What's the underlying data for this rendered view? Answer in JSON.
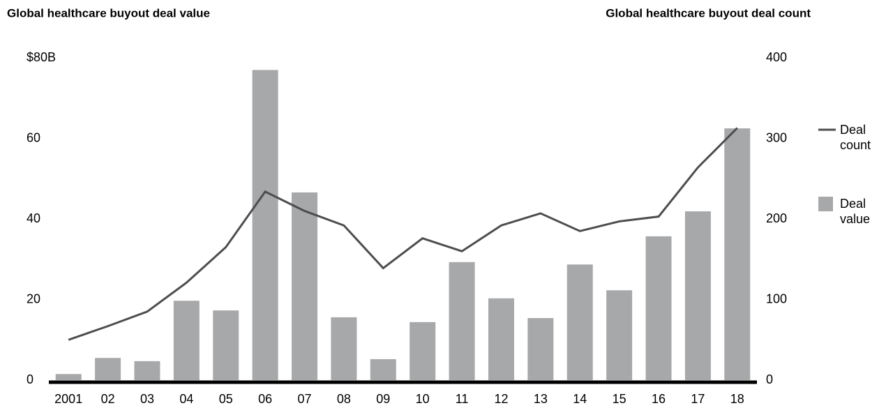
{
  "chart_data": {
    "type": "bar_line",
    "ylabel": "Global healthcare buyout deal value",
    "y2label": "Global healthcare buyout deal count",
    "categories": [
      "2001",
      "02",
      "03",
      "04",
      "05",
      "06",
      "07",
      "08",
      "09",
      "10",
      "11",
      "12",
      "13",
      "14",
      "15",
      "16",
      "17",
      "18"
    ],
    "series": [
      {
        "name": "Deal count",
        "type": "line",
        "axis": "y2",
        "color": "#4d4d4f",
        "values": [
          50,
          67,
          85,
          121,
          165,
          234,
          210,
          192,
          139,
          176,
          160,
          192,
          207,
          185,
          197,
          203,
          264,
          313
        ]
      },
      {
        "name": "Deal value",
        "type": "bar",
        "color": "#a7a8aa",
        "values": [
          1.5,
          5.5,
          4.7,
          19.7,
          17.3,
          77,
          46.6,
          15.6,
          5.2,
          14.4,
          29.3,
          20.3,
          15.4,
          28.7,
          22.3,
          35.7,
          41.9,
          62.5
        ]
      }
    ],
    "ylim": [
      0,
      80
    ],
    "yticks": [
      0,
      20,
      40,
      60,
      {
        "value": 80,
        "label": "$80B"
      }
    ],
    "y2lim": [
      0,
      400
    ],
    "y2ticks": [
      0,
      100,
      200,
      300,
      400
    ],
    "legend": "right"
  }
}
